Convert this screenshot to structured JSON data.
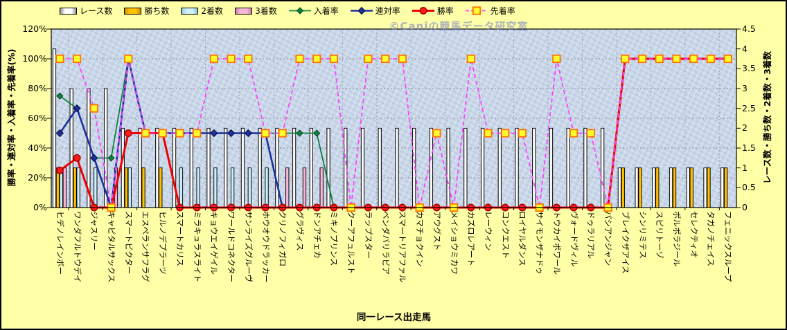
{
  "watermark": "©Caniの競馬データ研究室",
  "colors": {
    "background": "#FFFFA8",
    "plot_background": "#C9D7E9",
    "grid": "#8F8F8F",
    "race_bar": "#FFFFFF",
    "win_bar": "#FFC000",
    "second_bar": "#CFF0F8",
    "third_bar": "#F6B8D2",
    "nyuchaku_line": "#108040",
    "rentai_line": "#1C2F9C",
    "shoritsu_line": "#F00000",
    "senchaku_line": "#FF40FF",
    "marker_square_fill": "#FFFF2E",
    "marker_square_stroke": "#FF7000"
  },
  "legend": [
    {
      "label": "レース数",
      "kind": "bar",
      "series": 0
    },
    {
      "label": "勝ち数",
      "kind": "bar",
      "series": 1
    },
    {
      "label": "2着数",
      "kind": "bar",
      "series": 2
    },
    {
      "label": "3着数",
      "kind": "bar",
      "series": 3
    },
    {
      "label": "入着率",
      "kind": "line",
      "series": 0
    },
    {
      "label": "連対率",
      "kind": "line",
      "series": 1
    },
    {
      "label": "勝率",
      "kind": "line",
      "series": 2
    },
    {
      "label": "先着率",
      "kind": "dashed",
      "series": 3
    }
  ],
  "axes": {
    "left": {
      "title": "勝率・連対率・入着率・先着率(%)",
      "ticks": [
        "0%",
        "20%",
        "40%",
        "60%",
        "80%",
        "100%",
        "120%"
      ],
      "max": 120
    },
    "right": {
      "title": "レース数・勝ち数・2着数・3着数",
      "ticks": [
        "0",
        "0.5",
        "1",
        "1.5",
        "2",
        "2.5",
        "3",
        "3.5",
        "4",
        "4.5"
      ],
      "max": 4.5
    },
    "x": {
      "title": "同一レース出走馬"
    }
  },
  "chart_data": {
    "type": "combo-bar-line",
    "left_axis_range": [
      0,
      120
    ],
    "right_axis_range": [
      0,
      4.5
    ],
    "grid": "horizontal 20% steps, light vertical every 2 categories",
    "legend_position": "top",
    "categories": [
      "ヒデノレインボー",
      "ワンダフルトウデイ",
      "ジャスリー",
      "キャピタルサックス",
      "スマートビクター",
      "エスペランサフラグ",
      "ヒルノデプラーツ",
      "スマートカリス",
      "ミラキュラスライト",
      "キョウエイゲイル",
      "ワールドコネクター",
      "サンライズグルーヴ",
      "ホウオウドラッカー",
      "クリノフィガロ",
      "グラヴィス",
      "ドンアチェカ",
      "ミキノプリンス",
      "クーアフュルスト",
      "ラップスター",
      "ベンダバリラビア",
      "スマートリアファル",
      "カマチョクイン",
      "アウグスト",
      "メイショウミカワ",
      "カズロレアート",
      "レーウィン",
      "コンクエスト",
      "ロイヤルダンス",
      "サイモンザナドゥ",
      "トウカイポワール",
      "ヴォードヴィル",
      "ドゥラリアル",
      "パシアンジャン",
      "ブレイクザアイス",
      "シンリミテス",
      "スピリトーゾ",
      "ポルポラジール",
      "セレクティオ",
      "タガノチェイス",
      "フェニックスループ"
    ],
    "bar_series": [
      {
        "name": "レース数",
        "axis": "right",
        "values": [
          4,
          3,
          3,
          3,
          2,
          2,
          2,
          2,
          2,
          2,
          2,
          2,
          2,
          2,
          2,
          2,
          2,
          2,
          2,
          2,
          2,
          2,
          2,
          2,
          2,
          2,
          2,
          2,
          2,
          2,
          2,
          2,
          2,
          1,
          1,
          1,
          1,
          1,
          1,
          1
        ]
      },
      {
        "name": "勝ち数",
        "axis": "right",
        "values": [
          1,
          1,
          0,
          0,
          1,
          1,
          1,
          0,
          0,
          0,
          0,
          0,
          0,
          0,
          0,
          0,
          0,
          0,
          0,
          0,
          0,
          0,
          0,
          0,
          0,
          0,
          0,
          0,
          0,
          0,
          0,
          0,
          0,
          1,
          1,
          1,
          1,
          1,
          1,
          1
        ]
      },
      {
        "name": "2着数",
        "axis": "right",
        "values": [
          1,
          1,
          1,
          0,
          1,
          0,
          0,
          1,
          1,
          1,
          1,
          1,
          1,
          0,
          0,
          0,
          0,
          0,
          0,
          0,
          0,
          0,
          0,
          0,
          0,
          0,
          0,
          0,
          0,
          0,
          0,
          0,
          0,
          0,
          0,
          0,
          0,
          0,
          0,
          0
        ]
      },
      {
        "name": "3着数",
        "axis": "right",
        "values": [
          1,
          0,
          0,
          1,
          0,
          0,
          0,
          0,
          0,
          0,
          0,
          0,
          0,
          1,
          1,
          1,
          0,
          0,
          0,
          0,
          0,
          0,
          0,
          0,
          0,
          0,
          0,
          0,
          0,
          0,
          0,
          0,
          0,
          0,
          0,
          0,
          0,
          0,
          0,
          0
        ]
      }
    ],
    "line_series": [
      {
        "name": "入着率",
        "axis": "left",
        "unit": "%",
        "values": [
          75,
          66.7,
          33.3,
          33.3,
          100,
          50,
          50,
          50,
          50,
          50,
          50,
          50,
          50,
          50,
          50,
          50,
          0,
          0,
          0,
          0,
          0,
          0,
          0,
          0,
          0,
          0,
          0,
          0,
          0,
          0,
          0,
          0,
          0,
          100,
          100,
          100,
          100,
          100,
          100,
          100
        ]
      },
      {
        "name": "連対率",
        "axis": "left",
        "unit": "%",
        "values": [
          50,
          66.7,
          33.3,
          0,
          100,
          50,
          50,
          50,
          50,
          50,
          50,
          50,
          50,
          0,
          0,
          0,
          0,
          0,
          0,
          0,
          0,
          0,
          0,
          0,
          0,
          0,
          0,
          0,
          0,
          0,
          0,
          0,
          0,
          100,
          100,
          100,
          100,
          100,
          100,
          100
        ]
      },
      {
        "name": "勝率",
        "axis": "left",
        "unit": "%",
        "values": [
          25,
          33.3,
          0,
          0,
          50,
          50,
          50,
          0,
          0,
          0,
          0,
          0,
          0,
          0,
          0,
          0,
          0,
          0,
          0,
          0,
          0,
          0,
          0,
          0,
          0,
          0,
          0,
          0,
          0,
          0,
          0,
          0,
          0,
          100,
          100,
          100,
          100,
          100,
          100,
          100
        ]
      },
      {
        "name": "先着率",
        "axis": "left",
        "unit": "%",
        "values": [
          100,
          100,
          66.7,
          0,
          100,
          50,
          50,
          50,
          50,
          100,
          100,
          100,
          50,
          50,
          100,
          100,
          100,
          0,
          100,
          100,
          100,
          0,
          50,
          0,
          100,
          50,
          50,
          50,
          0,
          100,
          50,
          50,
          0,
          100,
          100,
          100,
          100,
          100,
          100,
          100
        ]
      }
    ]
  }
}
